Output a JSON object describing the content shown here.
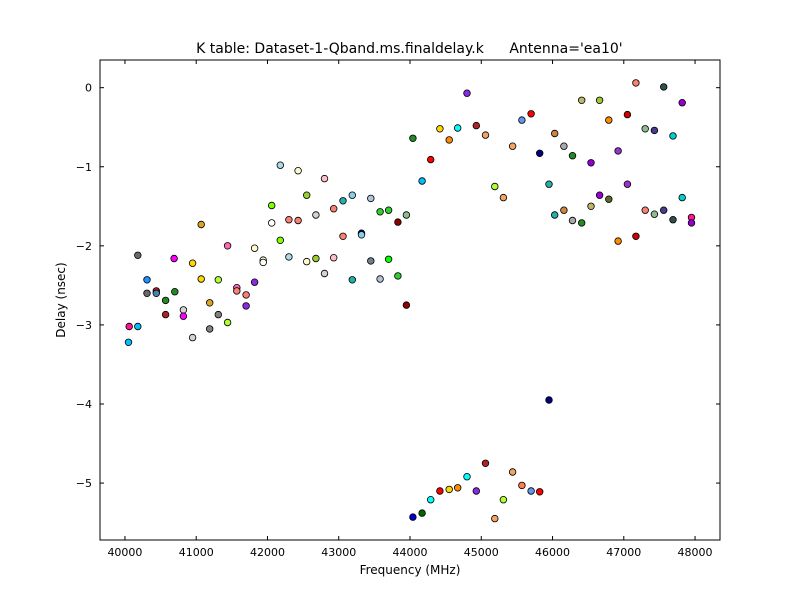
{
  "chart_data": {
    "type": "scatter",
    "title": "K table: Dataset-1-Qband.ms.finaldelay.k",
    "title_right": "Antenna='ea10'",
    "xlabel": "Frequency (MHz)",
    "ylabel": "Delay (nsec)",
    "xlim": [
      39650,
      48350
    ],
    "ylim": [
      -5.72,
      0.35
    ],
    "xticks": [
      40000,
      41000,
      42000,
      43000,
      44000,
      45000,
      46000,
      47000,
      48000
    ],
    "xtick_labels": [
      "40000",
      "41000",
      "42000",
      "43000",
      "44000",
      "45000",
      "46000",
      "47000",
      "48000"
    ],
    "yticks": [
      0,
      -1,
      -2,
      -3,
      -4,
      -5
    ],
    "ytick_labels": [
      "0",
      "−1",
      "−2",
      "−3",
      "−4",
      "−5"
    ],
    "grid": false,
    "marker": "circle",
    "points": [
      {
        "x": 40050,
        "y": -3.22,
        "color": "#00bfff"
      },
      {
        "x": 40060,
        "y": -3.02,
        "color": "#ff1493"
      },
      {
        "x": 40180,
        "y": -3.02,
        "color": "#00bfff"
      },
      {
        "x": 40180,
        "y": -2.12,
        "color": "#696969"
      },
      {
        "x": 40310,
        "y": -2.43,
        "color": "#1e90ff"
      },
      {
        "x": 40310,
        "y": -2.6,
        "color": "#696969"
      },
      {
        "x": 40440,
        "y": -2.57,
        "color": "#b22222"
      },
      {
        "x": 40440,
        "y": -2.6,
        "color": "#4682b4"
      },
      {
        "x": 40570,
        "y": -2.69,
        "color": "#228b22"
      },
      {
        "x": 40570,
        "y": -2.87,
        "color": "#b22222"
      },
      {
        "x": 40690,
        "y": -2.16,
        "color": "#ff00ff"
      },
      {
        "x": 40700,
        "y": -2.58,
        "color": "#228b22"
      },
      {
        "x": 40820,
        "y": -2.81,
        "color": "#d3d3d3"
      },
      {
        "x": 40820,
        "y": -2.89,
        "color": "#ff00ff"
      },
      {
        "x": 40950,
        "y": -2.22,
        "color": "#ffd700"
      },
      {
        "x": 40950,
        "y": -3.16,
        "color": "#d3d3d3"
      },
      {
        "x": 41070,
        "y": -1.73,
        "color": "#daa520"
      },
      {
        "x": 41070,
        "y": -2.42,
        "color": "#ffd700"
      },
      {
        "x": 41190,
        "y": -2.72,
        "color": "#daa520"
      },
      {
        "x": 41190,
        "y": -3.05,
        "color": "#808080"
      },
      {
        "x": 41310,
        "y": -2.43,
        "color": "#adff2f"
      },
      {
        "x": 41310,
        "y": -2.87,
        "color": "#808080"
      },
      {
        "x": 41440,
        "y": -2.0,
        "color": "#ff69b4"
      },
      {
        "x": 41440,
        "y": -2.97,
        "color": "#adff2f"
      },
      {
        "x": 41570,
        "y": -2.53,
        "color": "#ff69b4"
      },
      {
        "x": 41570,
        "y": -2.57,
        "color": "#fa8072"
      },
      {
        "x": 41700,
        "y": -2.62,
        "color": "#fa8072"
      },
      {
        "x": 41700,
        "y": -2.76,
        "color": "#8a2be2"
      },
      {
        "x": 41820,
        "y": -2.03,
        "color": "#fffacd"
      },
      {
        "x": 41820,
        "y": -2.46,
        "color": "#8a2be2"
      },
      {
        "x": 41940,
        "y": -2.18,
        "color": "#fffacd"
      },
      {
        "x": 41940,
        "y": -2.21,
        "color": "#ffffff"
      },
      {
        "x": 42060,
        "y": -1.49,
        "color": "#7fff00"
      },
      {
        "x": 42060,
        "y": -1.71,
        "color": "#ffffff"
      },
      {
        "x": 42180,
        "y": -0.98,
        "color": "#add8e6"
      },
      {
        "x": 42180,
        "y": -1.93,
        "color": "#7fff00"
      },
      {
        "x": 42300,
        "y": -1.67,
        "color": "#fa8072"
      },
      {
        "x": 42300,
        "y": -2.14,
        "color": "#add8e6"
      },
      {
        "x": 42430,
        "y": -1.05,
        "color": "#fffacd"
      },
      {
        "x": 42430,
        "y": -1.68,
        "color": "#fa8072"
      },
      {
        "x": 42550,
        "y": -1.36,
        "color": "#9acd32"
      },
      {
        "x": 42550,
        "y": -2.2,
        "color": "#fffacd"
      },
      {
        "x": 42680,
        "y": -1.61,
        "color": "#d3d3d3"
      },
      {
        "x": 42680,
        "y": -2.16,
        "color": "#9acd32"
      },
      {
        "x": 42800,
        "y": -1.15,
        "color": "#ffc0cb"
      },
      {
        "x": 42800,
        "y": -2.35,
        "color": "#d3d3d3"
      },
      {
        "x": 42930,
        "y": -1.53,
        "color": "#fa8072"
      },
      {
        "x": 42930,
        "y": -2.15,
        "color": "#ffc0cb"
      },
      {
        "x": 43060,
        "y": -1.43,
        "color": "#20b2aa"
      },
      {
        "x": 43060,
        "y": -1.88,
        "color": "#fa8072"
      },
      {
        "x": 43190,
        "y": -1.36,
        "color": "#87ceeb"
      },
      {
        "x": 43190,
        "y": -2.43,
        "color": "#20b2aa"
      },
      {
        "x": 43320,
        "y": -1.84,
        "color": "#000080"
      },
      {
        "x": 43320,
        "y": -1.86,
        "color": "#87ceeb"
      },
      {
        "x": 43450,
        "y": -1.4,
        "color": "#b0c4de"
      },
      {
        "x": 43450,
        "y": -2.19,
        "color": "#708090"
      },
      {
        "x": 43580,
        "y": -1.57,
        "color": "#32cd32"
      },
      {
        "x": 43580,
        "y": -2.42,
        "color": "#b0c4de"
      },
      {
        "x": 43700,
        "y": -1.55,
        "color": "#32cd32"
      },
      {
        "x": 43700,
        "y": -2.17,
        "color": "#00ff00"
      },
      {
        "x": 43830,
        "y": -1.7,
        "color": "#8b0000"
      },
      {
        "x": 43830,
        "y": -2.38,
        "color": "#32cd32"
      },
      {
        "x": 43950,
        "y": -1.61,
        "color": "#8fbc8f"
      },
      {
        "x": 43950,
        "y": -2.75,
        "color": "#8b0000"
      },
      {
        "x": 44040,
        "y": -0.64,
        "color": "#228b22"
      },
      {
        "x": 44040,
        "y": -5.43,
        "color": "#0000cd"
      },
      {
        "x": 44170,
        "y": -1.18,
        "color": "#00bfff"
      },
      {
        "x": 44170,
        "y": -5.38,
        "color": "#006400"
      },
      {
        "x": 44290,
        "y": -0.91,
        "color": "#ff0000"
      },
      {
        "x": 44290,
        "y": -5.21,
        "color": "#00ffff"
      },
      {
        "x": 44420,
        "y": -0.52,
        "color": "#ffd700"
      },
      {
        "x": 44420,
        "y": -5.1,
        "color": "#ff0000"
      },
      {
        "x": 44550,
        "y": -0.66,
        "color": "#ff8c00"
      },
      {
        "x": 44550,
        "y": -5.08,
        "color": "#ffd700"
      },
      {
        "x": 44670,
        "y": -0.51,
        "color": "#00ffff"
      },
      {
        "x": 44670,
        "y": -5.06,
        "color": "#ff8c00"
      },
      {
        "x": 44800,
        "y": -0.07,
        "color": "#8a2be2"
      },
      {
        "x": 44800,
        "y": -4.92,
        "color": "#00ffff"
      },
      {
        "x": 44930,
        "y": -0.48,
        "color": "#b22222"
      },
      {
        "x": 44930,
        "y": -5.1,
        "color": "#8a2be2"
      },
      {
        "x": 45060,
        "y": -0.6,
        "color": "#f4a460"
      },
      {
        "x": 45060,
        "y": -4.75,
        "color": "#b22222"
      },
      {
        "x": 45190,
        "y": -1.25,
        "color": "#adff2f"
      },
      {
        "x": 45190,
        "y": -5.45,
        "color": "#f4a460"
      },
      {
        "x": 45310,
        "y": -1.39,
        "color": "#f4a460"
      },
      {
        "x": 45310,
        "y": -5.21,
        "color": "#adff2f"
      },
      {
        "x": 45440,
        "y": -0.74,
        "color": "#f4a460"
      },
      {
        "x": 45440,
        "y": -4.86,
        "color": "#f4a460"
      },
      {
        "x": 45570,
        "y": -0.41,
        "color": "#6495ed"
      },
      {
        "x": 45570,
        "y": -5.03,
        "color": "#ff7f50"
      },
      {
        "x": 45700,
        "y": -0.33,
        "color": "#ff0000"
      },
      {
        "x": 45700,
        "y": -5.1,
        "color": "#6495ed"
      },
      {
        "x": 45820,
        "y": -0.83,
        "color": "#000080"
      },
      {
        "x": 45820,
        "y": -5.11,
        "color": "#ff0000"
      },
      {
        "x": 45950,
        "y": -1.22,
        "color": "#20b2aa"
      },
      {
        "x": 45950,
        "y": -3.95,
        "color": "#000080"
      },
      {
        "x": 46030,
        "y": -0.58,
        "color": "#cd853f"
      },
      {
        "x": 46030,
        "y": -1.61,
        "color": "#20b2aa"
      },
      {
        "x": 46160,
        "y": -0.74,
        "color": "#a9a9a9"
      },
      {
        "x": 46160,
        "y": -1.55,
        "color": "#cd853f"
      },
      {
        "x": 46280,
        "y": -0.86,
        "color": "#228b22"
      },
      {
        "x": 46280,
        "y": -1.68,
        "color": "#a9a9a9"
      },
      {
        "x": 46410,
        "y": -0.16,
        "color": "#bdb76b"
      },
      {
        "x": 46410,
        "y": -1.71,
        "color": "#228b22"
      },
      {
        "x": 46540,
        "y": -0.95,
        "color": "#9400d3"
      },
      {
        "x": 46540,
        "y": -1.5,
        "color": "#bdb76b"
      },
      {
        "x": 46660,
        "y": -0.16,
        "color": "#9acd32"
      },
      {
        "x": 46660,
        "y": -1.36,
        "color": "#9400d3"
      },
      {
        "x": 46790,
        "y": -0.41,
        "color": "#ff8c00"
      },
      {
        "x": 46790,
        "y": -1.41,
        "color": "#556b2f"
      },
      {
        "x": 46920,
        "y": -0.8,
        "color": "#9932cc"
      },
      {
        "x": 46920,
        "y": -1.94,
        "color": "#ff8c00"
      },
      {
        "x": 47050,
        "y": -0.34,
        "color": "#cc0000"
      },
      {
        "x": 47050,
        "y": -1.22,
        "color": "#9932cc"
      },
      {
        "x": 47170,
        "y": 0.06,
        "color": "#fa8072"
      },
      {
        "x": 47170,
        "y": -1.88,
        "color": "#cc0000"
      },
      {
        "x": 47300,
        "y": -0.52,
        "color": "#8fbc8f"
      },
      {
        "x": 47300,
        "y": -1.55,
        "color": "#fa8072"
      },
      {
        "x": 47430,
        "y": -0.54,
        "color": "#483d8b"
      },
      {
        "x": 47430,
        "y": -1.6,
        "color": "#8fbc8f"
      },
      {
        "x": 47560,
        "y": 0.01,
        "color": "#2f4f4f"
      },
      {
        "x": 47560,
        "y": -1.55,
        "color": "#483d8b"
      },
      {
        "x": 47690,
        "y": -0.61,
        "color": "#00ced1"
      },
      {
        "x": 47690,
        "y": -1.67,
        "color": "#2f4f4f"
      },
      {
        "x": 47820,
        "y": -0.19,
        "color": "#9400d3"
      },
      {
        "x": 47820,
        "y": -1.39,
        "color": "#00ced1"
      },
      {
        "x": 47950,
        "y": -1.64,
        "color": "#ff1493"
      },
      {
        "x": 47950,
        "y": -1.71,
        "color": "#9400d3"
      }
    ]
  }
}
